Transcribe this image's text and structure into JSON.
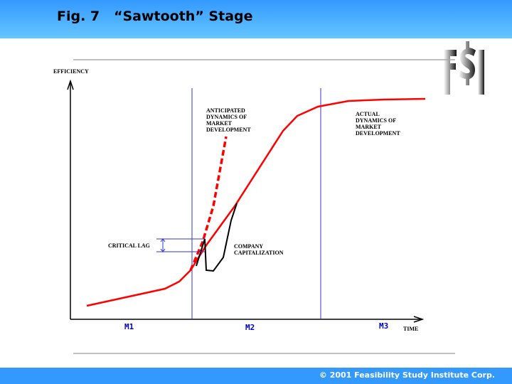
{
  "header": {
    "title": "Fig. 7   “Sawtooth” Stage"
  },
  "logo": {
    "text": "F$I"
  },
  "diagram": {
    "y_axis_label": "EFFICIENCY",
    "x_axis_label": "TIME",
    "stages": [
      "M1",
      "M2",
      "M3"
    ],
    "anticipated": [
      "ANTICIPATED",
      "DYNAMICS OF",
      "MARKET",
      "DEVELOPMENT"
    ],
    "actual": [
      "ACTUAL",
      "DYNAMICS OF",
      "MARKET",
      "DEVELOPMENT"
    ],
    "critical_lag": "CRITICAL LAG",
    "company": [
      "COMPANY",
      "CAPITALIZATION"
    ],
    "colors": {
      "actual": "#ff0000",
      "anticipated": "#ff0000",
      "company": "#000000",
      "stage_lines": "#3333cc"
    }
  },
  "footer": {
    "copyright": "© 2001 Feasibility Study Institute Corp."
  }
}
